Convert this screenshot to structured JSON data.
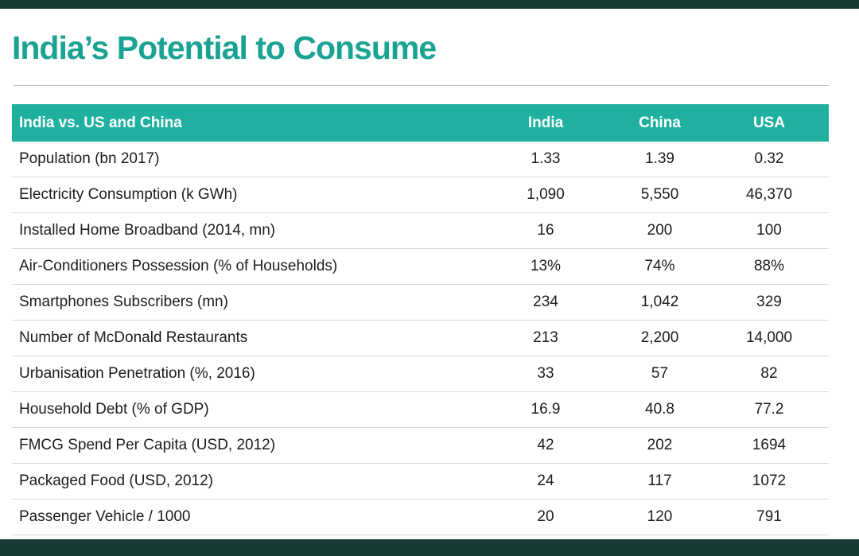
{
  "title": "India’s Potential to Consume",
  "table": {
    "headers": [
      "India vs. US and China",
      "India",
      "China",
      "USA"
    ],
    "rows": [
      {
        "label": "Population (bn 2017)",
        "india": "1.33",
        "china": "1.39",
        "usa": "0.32"
      },
      {
        "label": "Electricity Consumption (k GWh)",
        "india": "1,090",
        "china": "5,550",
        "usa": "46,370"
      },
      {
        "label": "Installed Home Broadband (2014, mn)",
        "india": "16",
        "china": "200",
        "usa": "100"
      },
      {
        "label": "Air-Conditioners Possession (% of Households)",
        "india": "13%",
        "china": "74%",
        "usa": "88%"
      },
      {
        "label": "Smartphones Subscribers (mn)",
        "india": "234",
        "china": "1,042",
        "usa": "329"
      },
      {
        "label": "Number of McDonald Restaurants",
        "india": "213",
        "china": "2,200",
        "usa": "14,000"
      },
      {
        "label": "Urbanisation Penetration (%, 2016)",
        "india": "33",
        "china": "57",
        "usa": "82"
      },
      {
        "label": "Household Debt (% of GDP)",
        "india": "16.9",
        "china": "40.8",
        "usa": "77.2"
      },
      {
        "label": "FMCG Spend Per Capita (USD, 2012)",
        "india": "42",
        "china": "202",
        "usa": "1694"
      },
      {
        "label": "Packaged Food (USD, 2012)",
        "india": "24",
        "china": "117",
        "usa": "1072"
      },
      {
        "label": "Passenger Vehicle / 1000",
        "india": "20",
        "china": "120",
        "usa": "791"
      }
    ]
  },
  "colors": {
    "title": "#1aa393",
    "header_background": "#1fb0a0",
    "frame": "#173a35"
  }
}
